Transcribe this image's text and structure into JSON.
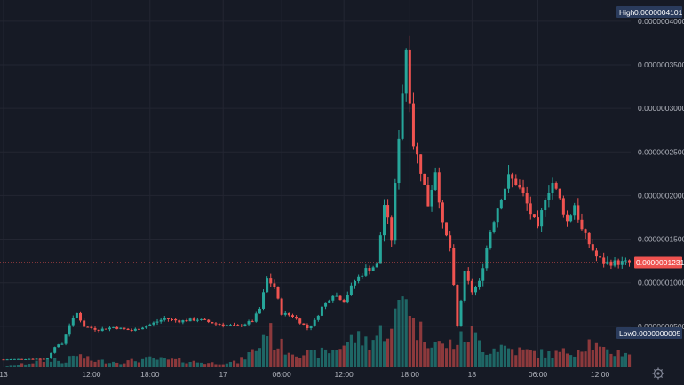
{
  "chart_data": {
    "type": "candlestick",
    "x_ticks": [
      {
        "label": "13",
        "index": 0
      },
      {
        "label": "12:00",
        "index": 24
      },
      {
        "label": "18:00",
        "index": 40
      },
      {
        "label": "17",
        "index": 60
      },
      {
        "label": "06:00",
        "index": 76
      },
      {
        "label": "12:00",
        "index": 93
      },
      {
        "label": "18:00",
        "index": 111
      },
      {
        "label": "18",
        "index": 128
      },
      {
        "label": "06:00",
        "index": 146
      },
      {
        "label": "12:00",
        "index": 163
      }
    ],
    "y_ticks": [
      "0.0000000500",
      "0.0000001000",
      "0.0000001500",
      "0.0000002000",
      "0.0000002500",
      "0.0000003000",
      "0.0000003500",
      "0.0000004000"
    ],
    "y_tick_values": [
      5e-08,
      1e-07,
      1.5e-07,
      2e-07,
      2.5e-07,
      3e-07,
      3.5e-07,
      4e-07
    ],
    "ylim": [
      0,
      4.1e-07
    ],
    "high_label": "High",
    "high_value": "0.0000004101",
    "low_label": "Low",
    "low_value": "0.0000000005",
    "last_price": "0.0000001231",
    "last_price_value": 1.231e-07,
    "colors": {
      "up": "#26a69a",
      "down": "#ef5350",
      "background": "#161a25",
      "grid": "#232632",
      "text": "#b2b5be",
      "tag": "#2a3b5c"
    },
    "series_points": [
      [
        0,
        1.2e-08
      ],
      [
        12,
        1.3e-08
      ],
      [
        14,
        2.7e-08
      ],
      [
        16,
        3e-08
      ],
      [
        18,
        5.2e-08
      ],
      [
        20,
        6.5e-08
      ],
      [
        22,
        5e-08
      ],
      [
        26,
        4.6e-08
      ],
      [
        30,
        4.9e-08
      ],
      [
        35,
        4.5e-08
      ],
      [
        40,
        5.2e-08
      ],
      [
        44,
        5.9e-08
      ],
      [
        48,
        5.6e-08
      ],
      [
        53,
        5.8e-08
      ],
      [
        58,
        5.3e-08
      ],
      [
        64,
        5e-08
      ],
      [
        68,
        5.6e-08
      ],
      [
        70,
        7e-08
      ],
      [
        72,
        1.05e-07
      ],
      [
        74,
        9.5e-08
      ],
      [
        76,
        6.5e-08
      ],
      [
        79,
        6.2e-08
      ],
      [
        81,
        5.5e-08
      ],
      [
        83,
        4.8e-08
      ],
      [
        85,
        5.6e-08
      ],
      [
        87,
        7.2e-08
      ],
      [
        90,
        8.7e-08
      ],
      [
        93,
        8e-08
      ],
      [
        96,
        1.02e-07
      ],
      [
        99,
        1.15e-07
      ],
      [
        102,
        1.2e-07
      ],
      [
        104,
        1.9e-07
      ],
      [
        106,
        1.5e-07
      ],
      [
        108,
        2.7e-07
      ],
      [
        110,
        3.7e-07
      ],
      [
        112,
        2.6e-07
      ],
      [
        114,
        2.3e-07
      ],
      [
        116,
        1.9e-07
      ],
      [
        118,
        2.3e-07
      ],
      [
        120,
        1.65e-07
      ],
      [
        122,
        1.4e-07
      ],
      [
        124,
        5e-08
      ],
      [
        126,
        1.1e-07
      ],
      [
        128,
        9e-08
      ],
      [
        130,
        1e-07
      ],
      [
        133,
        1.6e-07
      ],
      [
        136,
        2e-07
      ],
      [
        138,
        2.2e-07
      ],
      [
        140,
        2.15e-07
      ],
      [
        142,
        2e-07
      ],
      [
        144,
        1.8e-07
      ],
      [
        146,
        1.6e-07
      ],
      [
        148,
        2e-07
      ],
      [
        150,
        2.15e-07
      ],
      [
        152,
        1.95e-07
      ],
      [
        154,
        1.7e-07
      ],
      [
        156,
        1.9e-07
      ],
      [
        158,
        1.6e-07
      ],
      [
        160,
        1.45e-07
      ],
      [
        162,
        1.3e-07
      ],
      [
        164,
        1.23e-07
      ]
    ],
    "vol_points": [
      [
        0,
        0.0
      ],
      [
        14,
        0.1
      ],
      [
        16,
        0.05
      ],
      [
        20,
        0.15
      ],
      [
        24,
        0.08
      ],
      [
        32,
        0.06
      ],
      [
        40,
        0.1
      ],
      [
        48,
        0.08
      ],
      [
        56,
        0.05
      ],
      [
        64,
        0.06
      ],
      [
        70,
        0.25
      ],
      [
        72,
        0.5
      ],
      [
        74,
        0.3
      ],
      [
        78,
        0.2
      ],
      [
        84,
        0.15
      ],
      [
        90,
        0.2
      ],
      [
        96,
        0.35
      ],
      [
        100,
        0.3
      ],
      [
        104,
        0.45
      ],
      [
        106,
        0.4
      ],
      [
        108,
        0.75
      ],
      [
        110,
        1.0
      ],
      [
        112,
        0.5
      ],
      [
        116,
        0.35
      ],
      [
        120,
        0.25
      ],
      [
        124,
        0.3
      ],
      [
        128,
        0.4
      ],
      [
        132,
        0.2
      ],
      [
        136,
        0.25
      ],
      [
        140,
        0.2
      ],
      [
        144,
        0.18
      ],
      [
        150,
        0.15
      ],
      [
        156,
        0.2
      ],
      [
        160,
        0.3
      ],
      [
        164,
        0.18
      ]
    ]
  }
}
